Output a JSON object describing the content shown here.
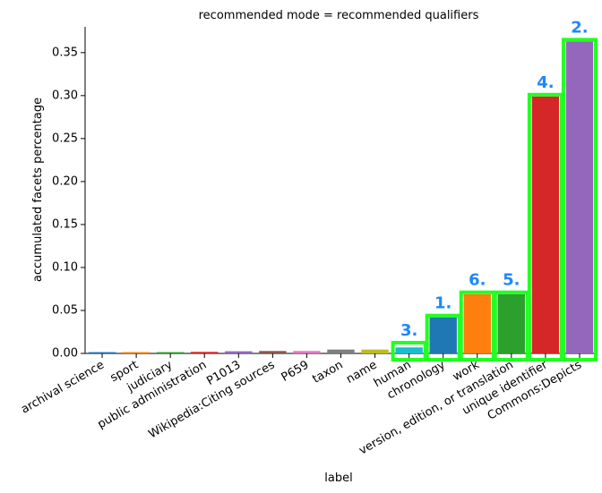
{
  "chart_data": {
    "type": "bar",
    "title": "recommended mode = recommended qualifiers",
    "xlabel": "label",
    "ylabel": "accumulated facets percentage",
    "ylim": [
      0,
      0.38
    ],
    "yticks": [
      "0.00",
      "0.05",
      "0.10",
      "0.15",
      "0.20",
      "0.25",
      "0.30",
      "0.35"
    ],
    "ytick_values": [
      0,
      0.05,
      0.1,
      0.15,
      0.2,
      0.25,
      0.3,
      0.35
    ],
    "grid": false,
    "categories": [
      "archival science",
      "sport",
      "judiciary",
      "public administration",
      "P1013",
      "Wikipedia:Citing sources",
      "P659",
      "taxon",
      "name",
      "human",
      "chronology",
      "work",
      "version, edition, or translation",
      "unique identifier",
      "Commons:Depicts"
    ],
    "values": [
      0.0015,
      0.0015,
      0.0015,
      0.0018,
      0.0025,
      0.0028,
      0.0028,
      0.0045,
      0.0045,
      0.007,
      0.042,
      0.069,
      0.069,
      0.299,
      0.363
    ],
    "colors": [
      "#1f77b4",
      "#ff7f0e",
      "#2ca02c",
      "#d62728",
      "#9467bd",
      "#8c564b",
      "#e377c2",
      "#7f7f7f",
      "#bcbd22",
      "#17becf",
      "#1f77b4",
      "#ff7f0e",
      "#2ca02c",
      "#d62728",
      "#9467bd"
    ],
    "highlights": [
      {
        "category_index": 9,
        "label": "3."
      },
      {
        "category_index": 10,
        "label": "1."
      },
      {
        "category_index": 11,
        "label": "6."
      },
      {
        "category_index": 12,
        "label": "5."
      },
      {
        "category_index": 13,
        "label": "4."
      },
      {
        "category_index": 14,
        "label": "2."
      }
    ],
    "highlight_color": "#22ff22",
    "annotation_color": "#1e88ff"
  }
}
